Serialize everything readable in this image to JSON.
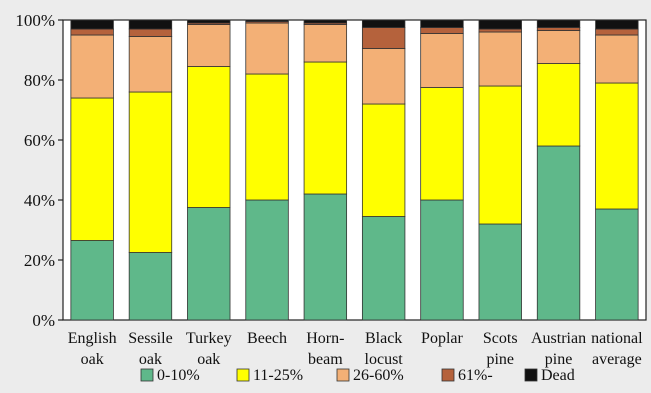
{
  "chart_data": {
    "type": "bar",
    "stacked": true,
    "title": "",
    "xlabel": "",
    "ylabel": "",
    "ylim": [
      0,
      100
    ],
    "yticks": [
      "0%",
      "20%",
      "40%",
      "60%",
      "80%",
      "100%"
    ],
    "grid": false,
    "legend_position": "bottom",
    "categories": [
      [
        "English",
        "oak"
      ],
      [
        "Sessile",
        "oak"
      ],
      [
        "Turkey",
        "oak"
      ],
      [
        "Beech"
      ],
      [
        "Horn-",
        "beam"
      ],
      [
        "Black",
        "locust"
      ],
      [
        "Poplar"
      ],
      [
        "Scots",
        "pine"
      ],
      [
        "Austrian",
        "pine"
      ],
      [
        "national",
        "average"
      ]
    ],
    "series": [
      {
        "name": "0-10%",
        "color": "#5fb88a",
        "values": [
          26.5,
          22.5,
          37.5,
          40,
          42,
          34.5,
          40,
          32,
          58,
          37
        ]
      },
      {
        "name": "11-25%",
        "color": "#ffff00",
        "values": [
          47.5,
          53.5,
          47,
          42,
          44,
          37.5,
          37.5,
          46,
          27.5,
          42
        ]
      },
      {
        "name": "26-60%",
        "color": "#f3b076",
        "values": [
          21,
          18.5,
          14,
          17,
          12.5,
          18.5,
          18,
          18,
          11,
          16
        ]
      },
      {
        "name": "61%-",
        "color": "#b5623c",
        "values": [
          2,
          2.5,
          0.5,
          0.5,
          0.5,
          7,
          2,
          1,
          1,
          2
        ]
      },
      {
        "name": "Dead",
        "color": "#111111",
        "values": [
          3,
          3,
          1,
          0.5,
          1,
          2.5,
          2.5,
          3,
          2.5,
          3
        ]
      }
    ]
  }
}
